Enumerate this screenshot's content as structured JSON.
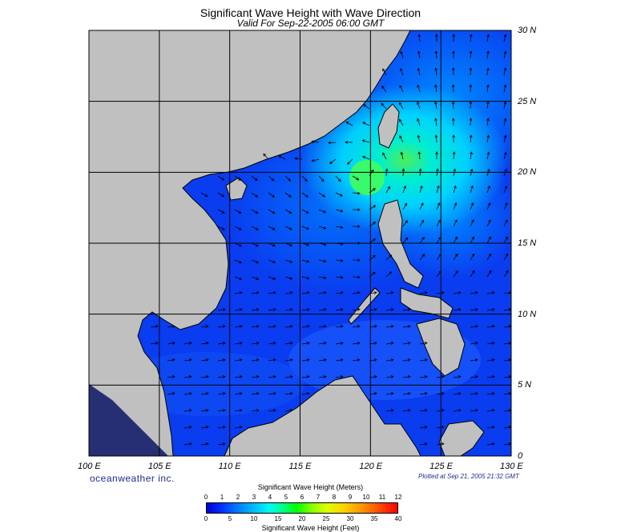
{
  "header": {
    "title": "Significant Wave Height with Wave Direction",
    "subtitle": "Valid For Sep-22-2005 06:00 GMT"
  },
  "map": {
    "lon_range": [
      100,
      130
    ],
    "lat_range": [
      0,
      30
    ],
    "lon_labels": [
      "100 E",
      "105 E",
      "110 E",
      "115 E",
      "120 E",
      "125 E",
      "130 E"
    ],
    "lat_labels": [
      "30 N",
      "25 N",
      "20 N",
      "15 N",
      "10 N",
      "5 N",
      "0"
    ],
    "land_color": "#c0c0c0",
    "ocean_base_color": "#0a3cf0",
    "storm_center": {
      "lon": 119.5,
      "lat": 20.3,
      "label_color": "#00ff66"
    }
  },
  "footer": {
    "brand": "oceanweather inc.",
    "plotted": "Plotted at Sep 21, 2005 21:32 GMT"
  },
  "colorbar": {
    "meters_title": "Significant Wave Height (Meters)",
    "feet_title": "Significant Wave Height (Feet)",
    "meters_ticks": [
      "0",
      "1",
      "2",
      "3",
      "4",
      "5",
      "6",
      "7",
      "8",
      "9",
      "10",
      "11",
      "12"
    ],
    "feet_ticks": [
      "0",
      "5",
      "10",
      "15",
      "20",
      "25",
      "30",
      "35",
      "40"
    ]
  }
}
